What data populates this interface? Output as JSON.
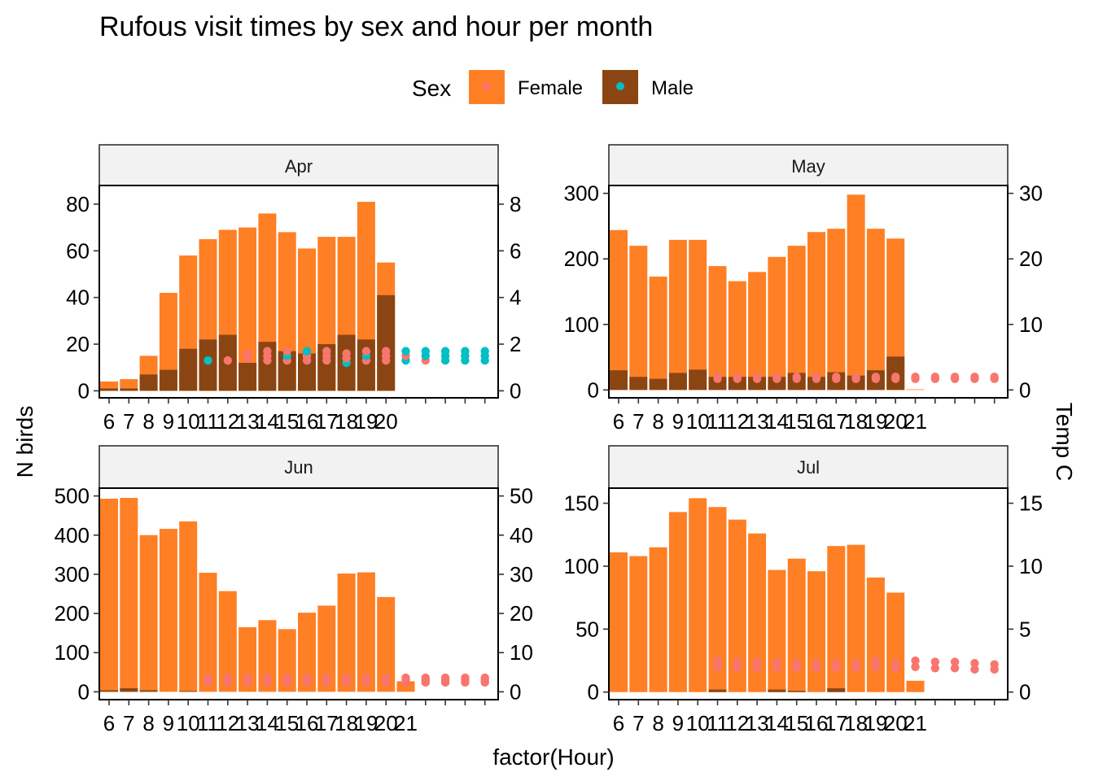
{
  "title": "Rufous visit times by sex and hour per month",
  "legend": {
    "title": "Sex",
    "position": "top",
    "items": [
      {
        "label": "Female",
        "fill": "#FF7F24",
        "point": "#F8766D"
      },
      {
        "label": "Male",
        "fill": "#8B4513",
        "point": "#00BFC4"
      }
    ]
  },
  "xlabel": "factor(Hour)",
  "ylabel": "N birds",
  "y2label": "Temp C",
  "colors": {
    "female_bar": "#FF7F24",
    "male_bar": "#8B4513",
    "female_point": "#F8766D",
    "male_point": "#00BFC4",
    "strip_bg": "#F2F2F2"
  },
  "chart_data": [
    {
      "type": "bar",
      "facet": "Apr",
      "categories": [
        "6",
        "7",
        "8",
        "9",
        "10",
        "11",
        "12",
        "13",
        "14",
        "15",
        "16",
        "17",
        "18",
        "19",
        "20"
      ],
      "series": [
        {
          "name": "Female",
          "values": [
            4,
            5,
            15,
            42,
            58,
            65,
            69,
            70,
            76,
            68,
            61,
            66,
            66,
            81,
            55
          ]
        },
        {
          "name": "Male",
          "values": [
            1,
            1,
            7,
            9,
            18,
            22,
            24,
            12,
            21,
            17,
            16,
            20,
            24,
            22,
            41
          ]
        }
      ],
      "ylim": [
        -3,
        88
      ],
      "yticks": [
        0,
        20,
        40,
        60,
        80
      ],
      "y2ticks": [
        0,
        2,
        4,
        6,
        8
      ],
      "y2ratio": 10,
      "temp_points": [
        {
          "x": 11,
          "y": 1.3,
          "sex": "Male"
        },
        {
          "x": 12,
          "y": 1.3,
          "sex": "Female"
        },
        {
          "x": 13,
          "y": 1.4,
          "sex": "Female"
        },
        {
          "x": 13,
          "y": 1.6,
          "sex": "Female"
        },
        {
          "x": 14,
          "y": 1.3,
          "sex": "Female"
        },
        {
          "x": 14,
          "y": 1.5,
          "sex": "Female"
        },
        {
          "x": 14,
          "y": 1.7,
          "sex": "Female"
        },
        {
          "x": 15,
          "y": 1.3,
          "sex": "Female"
        },
        {
          "x": 15,
          "y": 1.5,
          "sex": "Male"
        },
        {
          "x": 15,
          "y": 1.7,
          "sex": "Female"
        },
        {
          "x": 16,
          "y": 1.3,
          "sex": "Female"
        },
        {
          "x": 16,
          "y": 1.5,
          "sex": "Female"
        },
        {
          "x": 16,
          "y": 1.7,
          "sex": "Male"
        },
        {
          "x": 17,
          "y": 1.3,
          "sex": "Female"
        },
        {
          "x": 17,
          "y": 1.5,
          "sex": "Female"
        },
        {
          "x": 17,
          "y": 1.7,
          "sex": "Female"
        },
        {
          "x": 18,
          "y": 1.2,
          "sex": "Male"
        },
        {
          "x": 18,
          "y": 1.4,
          "sex": "Female"
        },
        {
          "x": 18,
          "y": 1.6,
          "sex": "Female"
        },
        {
          "x": 19,
          "y": 1.3,
          "sex": "Female"
        },
        {
          "x": 19,
          "y": 1.5,
          "sex": "Male"
        },
        {
          "x": 19,
          "y": 1.7,
          "sex": "Female"
        },
        {
          "x": 20,
          "y": 1.3,
          "sex": "Female"
        },
        {
          "x": 20,
          "y": 1.5,
          "sex": "Female"
        },
        {
          "x": 20,
          "y": 1.7,
          "sex": "Female"
        },
        {
          "x": 21,
          "y": 1.3,
          "sex": "Male"
        },
        {
          "x": 21,
          "y": 1.5,
          "sex": "Female"
        },
        {
          "x": 21,
          "y": 1.7,
          "sex": "Male"
        },
        {
          "x": 22,
          "y": 1.3,
          "sex": "Female"
        },
        {
          "x": 22,
          "y": 1.5,
          "sex": "Male"
        },
        {
          "x": 22,
          "y": 1.7,
          "sex": "Male"
        },
        {
          "x": 23,
          "y": 1.3,
          "sex": "Male"
        },
        {
          "x": 23,
          "y": 1.5,
          "sex": "Male"
        },
        {
          "x": 23,
          "y": 1.7,
          "sex": "Male"
        },
        {
          "x": 24,
          "y": 1.3,
          "sex": "Male"
        },
        {
          "x": 24,
          "y": 1.5,
          "sex": "Male"
        },
        {
          "x": 24,
          "y": 1.7,
          "sex": "Male"
        },
        {
          "x": 25,
          "y": 1.3,
          "sex": "Male"
        },
        {
          "x": 25,
          "y": 1.5,
          "sex": "Male"
        },
        {
          "x": 25,
          "y": 1.7,
          "sex": "Male"
        }
      ]
    },
    {
      "type": "bar",
      "facet": "May",
      "categories": [
        "6",
        "7",
        "8",
        "9",
        "10",
        "11",
        "12",
        "13",
        "14",
        "15",
        "16",
        "17",
        "18",
        "19",
        "20",
        "21"
      ],
      "series": [
        {
          "name": "Female",
          "values": [
            244,
            220,
            173,
            229,
            229,
            189,
            166,
            180,
            203,
            220,
            241,
            246,
            298,
            246,
            231,
            1
          ]
        },
        {
          "name": "Male",
          "values": [
            30,
            20,
            17,
            26,
            31,
            20,
            20,
            20,
            20,
            26,
            20,
            27,
            22,
            30,
            51,
            0
          ]
        }
      ],
      "ylim": [
        -12,
        312
      ],
      "yticks": [
        0,
        100,
        200,
        300
      ],
      "y2ticks": [
        0,
        10,
        20,
        30
      ],
      "y2ratio": 10,
      "temp_points": [
        {
          "x": 11,
          "y": 1.7,
          "sex": "Female"
        },
        {
          "x": 11,
          "y": 2.0,
          "sex": "Female"
        },
        {
          "x": 12,
          "y": 1.7,
          "sex": "Female"
        },
        {
          "x": 12,
          "y": 2.0,
          "sex": "Female"
        },
        {
          "x": 13,
          "y": 1.7,
          "sex": "Female"
        },
        {
          "x": 13,
          "y": 2.0,
          "sex": "Female"
        },
        {
          "x": 14,
          "y": 1.7,
          "sex": "Female"
        },
        {
          "x": 14,
          "y": 2.0,
          "sex": "Female"
        },
        {
          "x": 15,
          "y": 1.7,
          "sex": "Female"
        },
        {
          "x": 15,
          "y": 2.0,
          "sex": "Female"
        },
        {
          "x": 16,
          "y": 1.7,
          "sex": "Female"
        },
        {
          "x": 16,
          "y": 2.0,
          "sex": "Female"
        },
        {
          "x": 17,
          "y": 1.7,
          "sex": "Female"
        },
        {
          "x": 17,
          "y": 2.0,
          "sex": "Female"
        },
        {
          "x": 18,
          "y": 1.7,
          "sex": "Female"
        },
        {
          "x": 18,
          "y": 2.0,
          "sex": "Female"
        },
        {
          "x": 19,
          "y": 1.7,
          "sex": "Female"
        },
        {
          "x": 19,
          "y": 2.0,
          "sex": "Female"
        },
        {
          "x": 20,
          "y": 1.7,
          "sex": "Female"
        },
        {
          "x": 20,
          "y": 2.0,
          "sex": "Female"
        },
        {
          "x": 21,
          "y": 1.7,
          "sex": "Female"
        },
        {
          "x": 21,
          "y": 2.0,
          "sex": "Female"
        },
        {
          "x": 22,
          "y": 1.7,
          "sex": "Female"
        },
        {
          "x": 22,
          "y": 2.0,
          "sex": "Female"
        },
        {
          "x": 23,
          "y": 1.7,
          "sex": "Female"
        },
        {
          "x": 23,
          "y": 2.0,
          "sex": "Female"
        },
        {
          "x": 24,
          "y": 1.7,
          "sex": "Female"
        },
        {
          "x": 24,
          "y": 2.0,
          "sex": "Female"
        },
        {
          "x": 25,
          "y": 1.7,
          "sex": "Female"
        },
        {
          "x": 25,
          "y": 2.0,
          "sex": "Female"
        },
        {
          "x": 26,
          "y": 1.7,
          "sex": "Female"
        },
        {
          "x": 26,
          "y": 2.0,
          "sex": "Female"
        }
      ]
    },
    {
      "type": "bar",
      "facet": "Jun",
      "categories": [
        "6",
        "7",
        "8",
        "9",
        "10",
        "11",
        "12",
        "13",
        "14",
        "15",
        "16",
        "17",
        "18",
        "19",
        "20",
        "21"
      ],
      "series": [
        {
          "name": "Female",
          "values": [
            493,
            495,
            400,
            416,
            435,
            304,
            257,
            165,
            183,
            160,
            202,
            220,
            302,
            305,
            242,
            27
          ]
        },
        {
          "name": "Male",
          "values": [
            4,
            9,
            4,
            0,
            2,
            0,
            0,
            0,
            0,
            0,
            0,
            0,
            0,
            0,
            0,
            0
          ]
        }
      ],
      "ylim": [
        -20,
        520
      ],
      "yticks": [
        0,
        100,
        200,
        300,
        400,
        500
      ],
      "y2ticks": [
        0,
        10,
        20,
        30,
        40,
        50
      ],
      "y2ratio": 10,
      "temp_points": [
        {
          "x": 11,
          "y": 2.4,
          "sex": "Female"
        },
        {
          "x": 11,
          "y": 3.0,
          "sex": "Female"
        },
        {
          "x": 11,
          "y": 3.6,
          "sex": "Female"
        },
        {
          "x": 12,
          "y": 2.4,
          "sex": "Female"
        },
        {
          "x": 12,
          "y": 3.0,
          "sex": "Female"
        },
        {
          "x": 12,
          "y": 3.6,
          "sex": "Female"
        },
        {
          "x": 13,
          "y": 2.4,
          "sex": "Female"
        },
        {
          "x": 13,
          "y": 3.0,
          "sex": "Female"
        },
        {
          "x": 13,
          "y": 3.6,
          "sex": "Female"
        },
        {
          "x": 14,
          "y": 2.4,
          "sex": "Female"
        },
        {
          "x": 14,
          "y": 3.0,
          "sex": "Female"
        },
        {
          "x": 14,
          "y": 3.6,
          "sex": "Female"
        },
        {
          "x": 15,
          "y": 2.4,
          "sex": "Female"
        },
        {
          "x": 15,
          "y": 3.0,
          "sex": "Female"
        },
        {
          "x": 15,
          "y": 3.6,
          "sex": "Female"
        },
        {
          "x": 16,
          "y": 2.4,
          "sex": "Female"
        },
        {
          "x": 16,
          "y": 3.0,
          "sex": "Female"
        },
        {
          "x": 16,
          "y": 3.6,
          "sex": "Female"
        },
        {
          "x": 17,
          "y": 2.4,
          "sex": "Female"
        },
        {
          "x": 17,
          "y": 3.0,
          "sex": "Female"
        },
        {
          "x": 17,
          "y": 3.6,
          "sex": "Female"
        },
        {
          "x": 18,
          "y": 2.4,
          "sex": "Female"
        },
        {
          "x": 18,
          "y": 3.0,
          "sex": "Female"
        },
        {
          "x": 18,
          "y": 3.6,
          "sex": "Female"
        },
        {
          "x": 19,
          "y": 2.4,
          "sex": "Female"
        },
        {
          "x": 19,
          "y": 3.0,
          "sex": "Female"
        },
        {
          "x": 19,
          "y": 3.6,
          "sex": "Female"
        },
        {
          "x": 20,
          "y": 2.4,
          "sex": "Female"
        },
        {
          "x": 20,
          "y": 3.0,
          "sex": "Female"
        },
        {
          "x": 20,
          "y": 3.6,
          "sex": "Female"
        },
        {
          "x": 21,
          "y": 2.4,
          "sex": "Female"
        },
        {
          "x": 21,
          "y": 3.0,
          "sex": "Female"
        },
        {
          "x": 21,
          "y": 3.6,
          "sex": "Female"
        },
        {
          "x": 22,
          "y": 2.4,
          "sex": "Female"
        },
        {
          "x": 22,
          "y": 3.0,
          "sex": "Female"
        },
        {
          "x": 22,
          "y": 3.6,
          "sex": "Female"
        },
        {
          "x": 23,
          "y": 2.4,
          "sex": "Female"
        },
        {
          "x": 23,
          "y": 3.0,
          "sex": "Female"
        },
        {
          "x": 23,
          "y": 3.6,
          "sex": "Female"
        },
        {
          "x": 24,
          "y": 2.4,
          "sex": "Female"
        },
        {
          "x": 24,
          "y": 3.0,
          "sex": "Female"
        },
        {
          "x": 24,
          "y": 3.6,
          "sex": "Female"
        },
        {
          "x": 25,
          "y": 2.4,
          "sex": "Female"
        },
        {
          "x": 25,
          "y": 3.0,
          "sex": "Female"
        },
        {
          "x": 25,
          "y": 3.6,
          "sex": "Female"
        },
        {
          "x": 26,
          "y": 2.4,
          "sex": "Female"
        },
        {
          "x": 26,
          "y": 3.0,
          "sex": "Female"
        },
        {
          "x": 26,
          "y": 3.6,
          "sex": "Female"
        }
      ]
    },
    {
      "type": "bar",
      "facet": "Jul",
      "categories": [
        "6",
        "7",
        "8",
        "9",
        "10",
        "11",
        "12",
        "13",
        "14",
        "15",
        "16",
        "17",
        "18",
        "19",
        "20",
        "21"
      ],
      "series": [
        {
          "name": "Female",
          "values": [
            111,
            108,
            115,
            143,
            154,
            147,
            137,
            126,
            97,
            106,
            96,
            116,
            117,
            91,
            79,
            9
          ]
        },
        {
          "name": "Male",
          "values": [
            0,
            0,
            0,
            0,
            0,
            2,
            0,
            0,
            2,
            1,
            0,
            3,
            0,
            0,
            0,
            0
          ]
        }
      ],
      "ylim": [
        -6,
        162
      ],
      "yticks": [
        0,
        50,
        100,
        150
      ],
      "y2ticks": [
        0,
        5,
        10,
        15
      ],
      "y2ratio": 10,
      "temp_points": [
        {
          "x": 11,
          "y": 2.0,
          "sex": "Female"
        },
        {
          "x": 11,
          "y": 2.5,
          "sex": "Female"
        },
        {
          "x": 12,
          "y": 1.9,
          "sex": "Female"
        },
        {
          "x": 12,
          "y": 2.4,
          "sex": "Female"
        },
        {
          "x": 13,
          "y": 1.9,
          "sex": "Female"
        },
        {
          "x": 13,
          "y": 2.4,
          "sex": "Female"
        },
        {
          "x": 14,
          "y": 1.9,
          "sex": "Female"
        },
        {
          "x": 14,
          "y": 2.4,
          "sex": "Female"
        },
        {
          "x": 15,
          "y": 1.9,
          "sex": "Female"
        },
        {
          "x": 15,
          "y": 2.3,
          "sex": "Female"
        },
        {
          "x": 16,
          "y": 1.9,
          "sex": "Female"
        },
        {
          "x": 16,
          "y": 2.3,
          "sex": "Female"
        },
        {
          "x": 17,
          "y": 1.9,
          "sex": "Female"
        },
        {
          "x": 17,
          "y": 2.3,
          "sex": "Female"
        },
        {
          "x": 18,
          "y": 1.9,
          "sex": "Female"
        },
        {
          "x": 18,
          "y": 2.3,
          "sex": "Female"
        },
        {
          "x": 19,
          "y": 2.0,
          "sex": "Female"
        },
        {
          "x": 19,
          "y": 2.5,
          "sex": "Female"
        },
        {
          "x": 20,
          "y": 1.9,
          "sex": "Female"
        },
        {
          "x": 20,
          "y": 2.3,
          "sex": "Female"
        },
        {
          "x": 21,
          "y": 2.0,
          "sex": "Female"
        },
        {
          "x": 21,
          "y": 2.5,
          "sex": "Female"
        },
        {
          "x": 22,
          "y": 1.9,
          "sex": "Female"
        },
        {
          "x": 22,
          "y": 2.4,
          "sex": "Female"
        },
        {
          "x": 23,
          "y": 1.9,
          "sex": "Female"
        },
        {
          "x": 23,
          "y": 2.4,
          "sex": "Female"
        },
        {
          "x": 24,
          "y": 1.8,
          "sex": "Female"
        },
        {
          "x": 24,
          "y": 2.3,
          "sex": "Female"
        },
        {
          "x": 25,
          "y": 1.8,
          "sex": "Female"
        },
        {
          "x": 25,
          "y": 2.2,
          "sex": "Female"
        },
        {
          "x": 26,
          "y": 1.8,
          "sex": "Female"
        },
        {
          "x": 26,
          "y": 2.2,
          "sex": "Female"
        }
      ]
    }
  ]
}
